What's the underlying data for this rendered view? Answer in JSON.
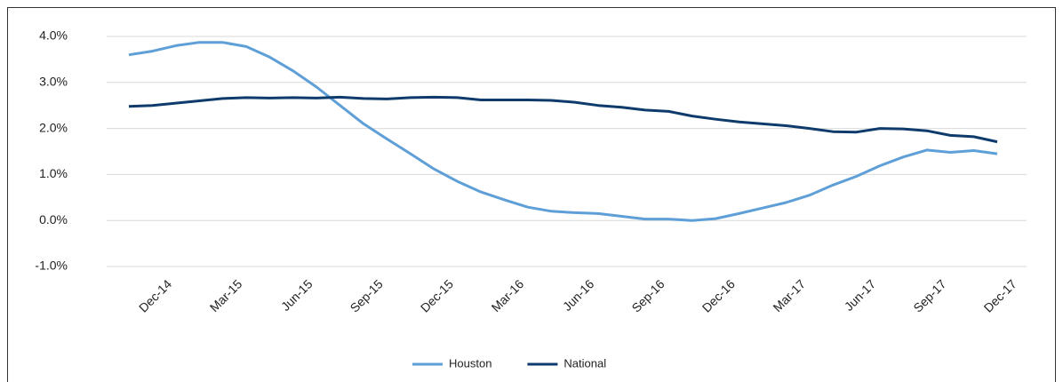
{
  "chart_data": {
    "type": "line",
    "categories": [
      null,
      "Dec-14",
      null,
      null,
      "Mar-15",
      null,
      null,
      "Jun-15",
      null,
      null,
      "Sep-15",
      null,
      null,
      "Dec-15",
      null,
      null,
      "Mar-16",
      null,
      null,
      "Jun-16",
      null,
      null,
      "Sep-16",
      null,
      null,
      "Dec-16",
      null,
      null,
      "Mar-17",
      null,
      null,
      "Jun-17",
      null,
      null,
      "Sep-17",
      null,
      null,
      "Dec-17"
    ],
    "series": [
      {
        "name": "Houston",
        "color": "#5e9fd8",
        "values": [
          3.6,
          3.68,
          3.8,
          3.87,
          3.87,
          3.78,
          3.55,
          3.25,
          2.9,
          2.5,
          2.1,
          1.77,
          1.45,
          1.12,
          0.85,
          0.62,
          0.45,
          0.29,
          0.2,
          0.17,
          0.15,
          0.09,
          0.03,
          0.03,
          0.0,
          0.04,
          0.15,
          0.27,
          0.39,
          0.55,
          0.77,
          0.96,
          1.19,
          1.38,
          1.53,
          1.48,
          1.52,
          1.45
        ]
      },
      {
        "name": "National",
        "color": "#0e3b6b",
        "values": [
          2.48,
          2.5,
          2.55,
          2.6,
          2.65,
          2.67,
          2.66,
          2.67,
          2.66,
          2.68,
          2.65,
          2.64,
          2.67,
          2.68,
          2.67,
          2.62,
          2.62,
          2.62,
          2.61,
          2.57,
          2.5,
          2.46,
          2.4,
          2.37,
          2.27,
          2.2,
          2.14,
          2.1,
          2.06,
          2.0,
          1.93,
          1.92,
          2.0,
          1.99,
          1.95,
          1.85,
          1.82,
          1.71
        ]
      }
    ],
    "ylim": [
      -1,
      4
    ],
    "yticks": [
      {
        "value": -1,
        "label": "-1.0%"
      },
      {
        "value": 0,
        "label": "0.0%"
      },
      {
        "value": 1,
        "label": "1.0%"
      },
      {
        "value": 2,
        "label": "2.0%"
      },
      {
        "value": 3,
        "label": "3.0%"
      },
      {
        "value": 4,
        "label": "4.0%"
      }
    ],
    "grid": true,
    "legend": "bottom"
  }
}
